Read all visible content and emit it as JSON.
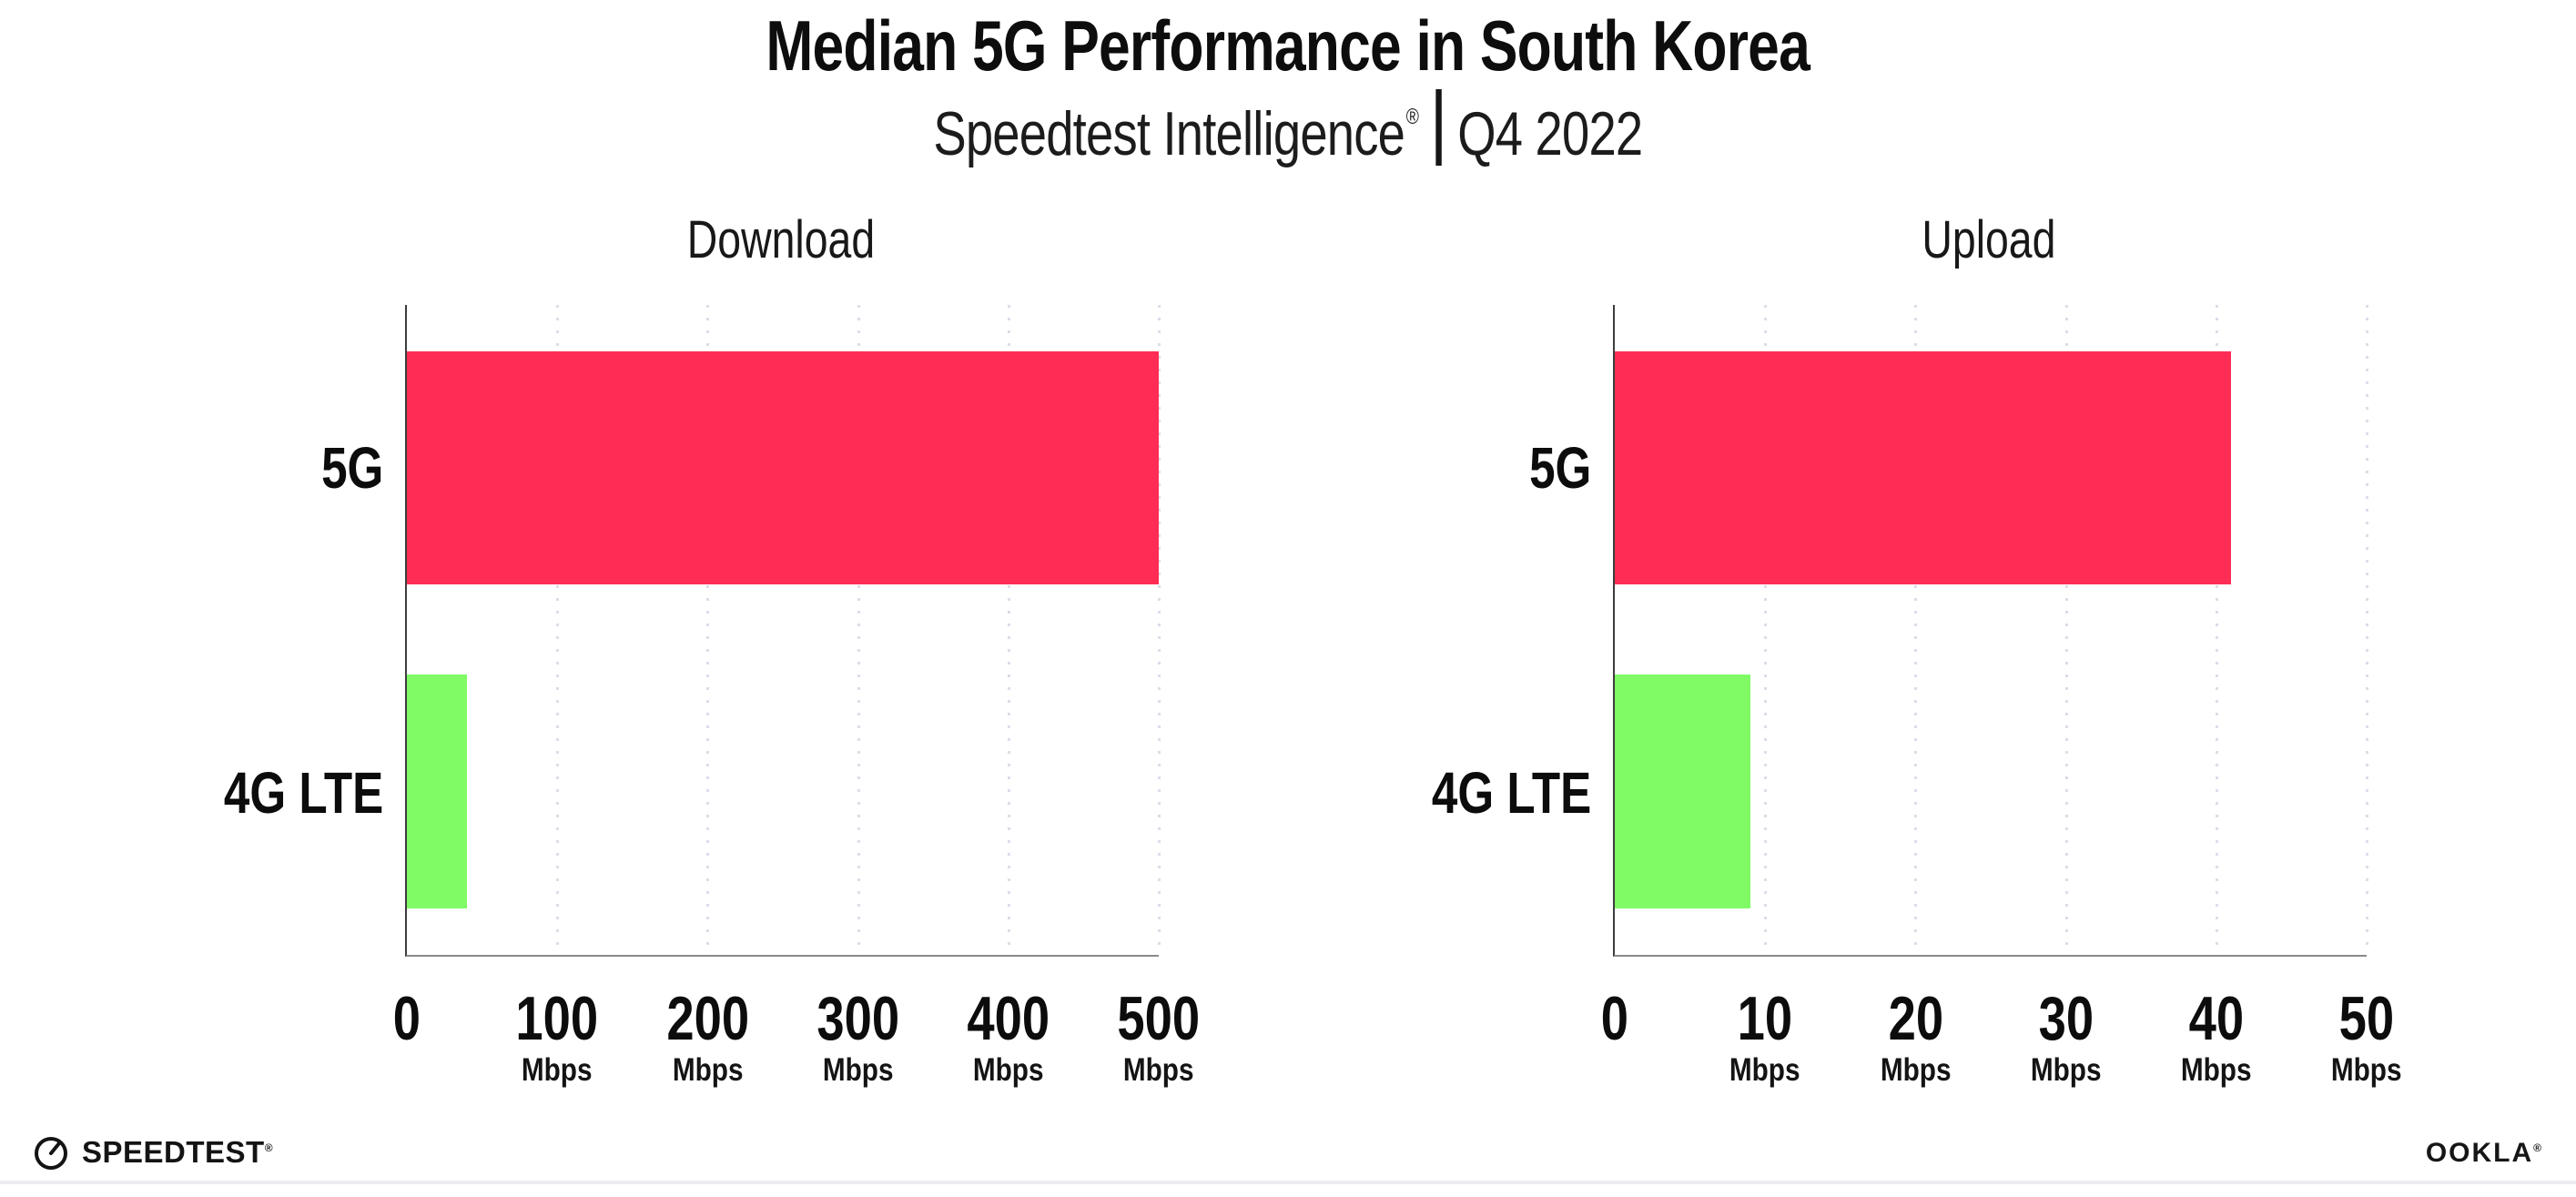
{
  "header": {
    "title": "Median 5G Performance in South Korea",
    "subtitle_brand": "Speedtest Intelligence",
    "subtitle_reg_mark": "®",
    "subtitle_period": "Q4 2022"
  },
  "colors": {
    "bar_5g": "#FF2D55",
    "bar_4g_lte": "#80FB66",
    "gridline": "#dcdde8",
    "left_spine": "#3d3d3d",
    "bottom_spine": "#8a8a8a",
    "text": "#0d0d0d"
  },
  "chart_data": [
    {
      "type": "bar",
      "orientation": "horizontal",
      "title": "Download",
      "categories": [
        "5G",
        "4G LTE"
      ],
      "values": [
        500,
        40
      ],
      "unit": "Mbps",
      "xlim": [
        0,
        500
      ],
      "xticks": [
        0,
        100,
        200,
        300,
        400,
        500
      ],
      "tick_unit_label": "Mbps",
      "grid": "vertical-dotted",
      "legend": "none",
      "bar_colors": [
        "#FF2D55",
        "#80FB66"
      ]
    },
    {
      "type": "bar",
      "orientation": "horizontal",
      "title": "Upload",
      "categories": [
        "5G",
        "4G LTE"
      ],
      "values": [
        41,
        9
      ],
      "unit": "Mbps",
      "xlim": [
        0,
        50
      ],
      "xticks": [
        0,
        10,
        20,
        30,
        40,
        50
      ],
      "tick_unit_label": "Mbps",
      "grid": "vertical-dotted",
      "legend": "none",
      "bar_colors": [
        "#FF2D55",
        "#80FB66"
      ]
    }
  ],
  "footer": {
    "speedtest_logo_text": "SPEEDTEST",
    "speedtest_trademark": "®",
    "ookla_logo_text": "OOKLA",
    "ookla_trademark": "®"
  }
}
